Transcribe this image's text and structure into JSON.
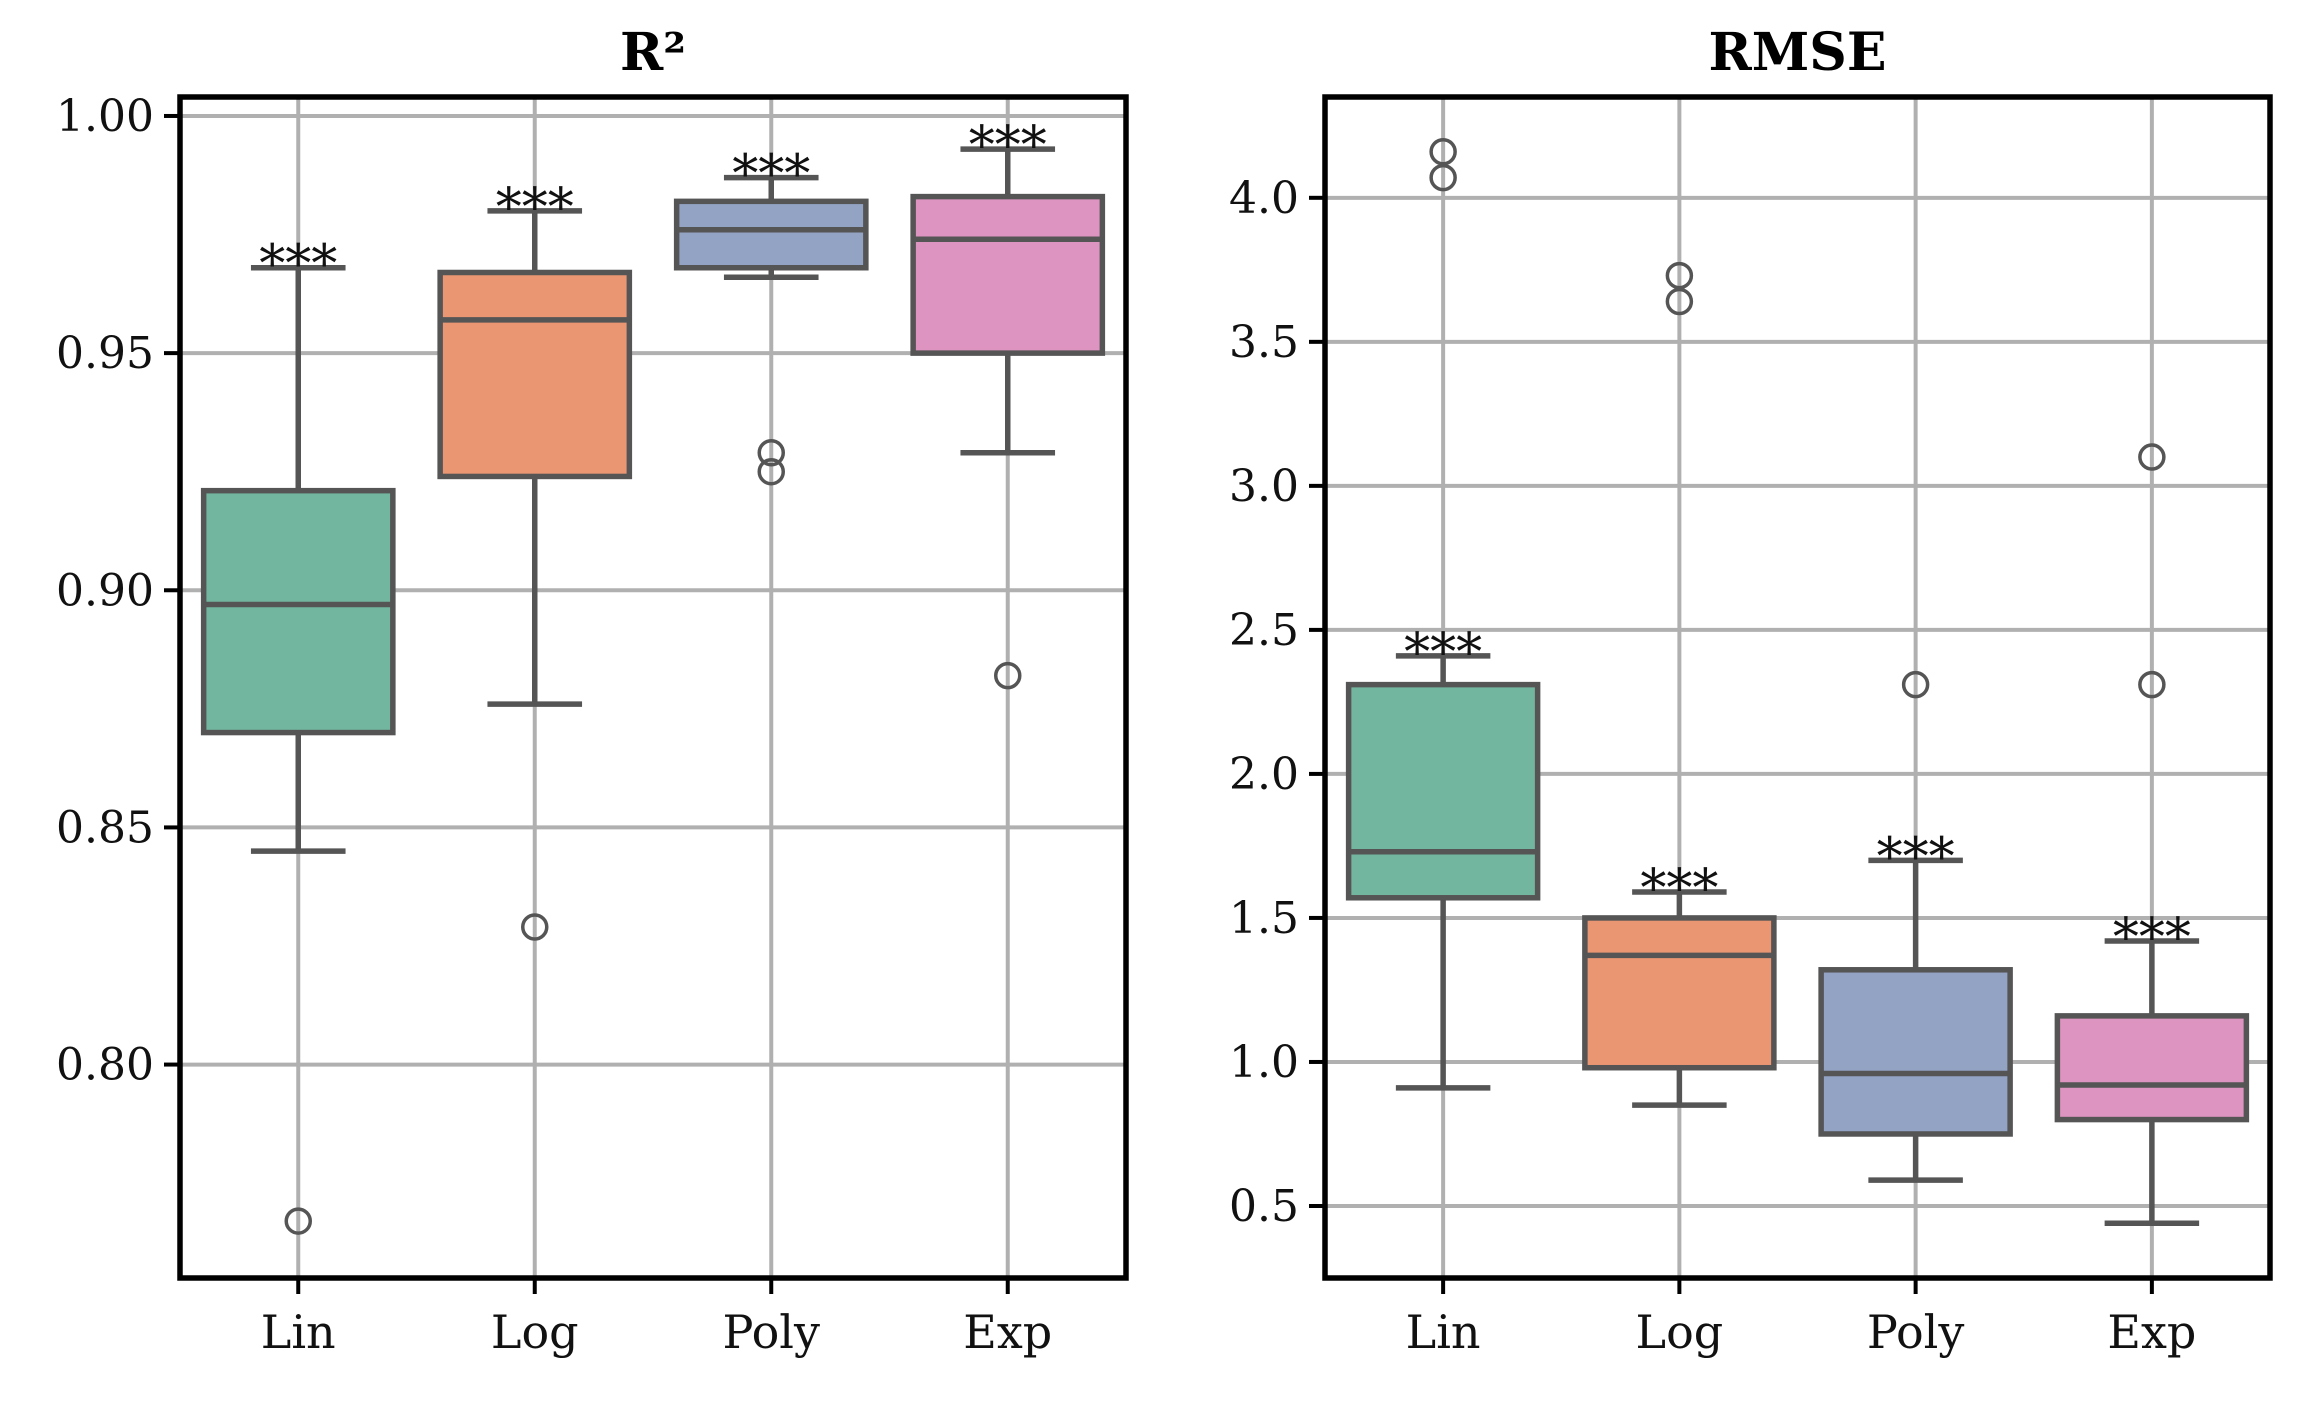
{
  "chart_data": [
    {
      "type": "box",
      "title": "R²",
      "xlabel": "",
      "ylabel": "",
      "ylim": [
        0.755,
        1.004
      ],
      "yticks": [
        0.8,
        0.85,
        0.9,
        0.95,
        1.0
      ],
      "ytick_labels": [
        "0.80",
        "0.85",
        "0.90",
        "0.95",
        "1.00"
      ],
      "grid": true,
      "categories": [
        "Lin",
        "Log",
        "Poly",
        "Exp"
      ],
      "colors": [
        "#72b6a0",
        "#ea9673",
        "#93a3c4",
        "#dd94c0"
      ],
      "boxes": [
        {
          "whisker_low": 0.845,
          "q1": 0.87,
          "median": 0.897,
          "q3": 0.921,
          "whisker_high": 0.968,
          "outliers": [
            0.767
          ],
          "annotation": "***"
        },
        {
          "whisker_low": 0.876,
          "q1": 0.924,
          "median": 0.957,
          "q3": 0.967,
          "whisker_high": 0.98,
          "outliers": [
            0.829
          ],
          "annotation": "***"
        },
        {
          "whisker_low": 0.966,
          "q1": 0.968,
          "median": 0.976,
          "q3": 0.982,
          "whisker_high": 0.987,
          "outliers": [
            0.929,
            0.925
          ],
          "annotation": "***"
        },
        {
          "whisker_low": 0.929,
          "q1": 0.95,
          "median": 0.974,
          "q3": 0.983,
          "whisker_high": 0.993,
          "outliers": [
            0.882
          ],
          "annotation": "***"
        }
      ]
    },
    {
      "type": "box",
      "title": "RMSE",
      "xlabel": "",
      "ylabel": "",
      "ylim": [
        0.25,
        4.35
      ],
      "yticks": [
        0.5,
        1.0,
        1.5,
        2.0,
        2.5,
        3.0,
        3.5,
        4.0
      ],
      "ytick_labels": [
        "0.5",
        "1.0",
        "1.5",
        "2.0",
        "2.5",
        "3.0",
        "3.5",
        "4.0"
      ],
      "grid": true,
      "categories": [
        "Lin",
        "Log",
        "Poly",
        "Exp"
      ],
      "colors": [
        "#72b6a0",
        "#ea9673",
        "#93a3c4",
        "#dd94c0"
      ],
      "boxes": [
        {
          "whisker_low": 0.91,
          "q1": 1.57,
          "median": 1.73,
          "q3": 2.31,
          "whisker_high": 2.41,
          "outliers": [
            4.16,
            4.07
          ],
          "annotation": "***"
        },
        {
          "whisker_low": 0.85,
          "q1": 0.98,
          "median": 1.37,
          "q3": 1.5,
          "whisker_high": 1.59,
          "outliers": [
            3.73,
            3.64
          ],
          "annotation": "***"
        },
        {
          "whisker_low": 0.59,
          "q1": 0.75,
          "median": 0.96,
          "q3": 1.32,
          "whisker_high": 1.7,
          "outliers": [
            2.31
          ],
          "annotation": "***"
        },
        {
          "whisker_low": 0.44,
          "q1": 0.8,
          "median": 0.92,
          "q3": 1.16,
          "whisker_high": 1.42,
          "outliers": [
            3.1,
            2.31
          ],
          "annotation": "***"
        }
      ]
    }
  ]
}
